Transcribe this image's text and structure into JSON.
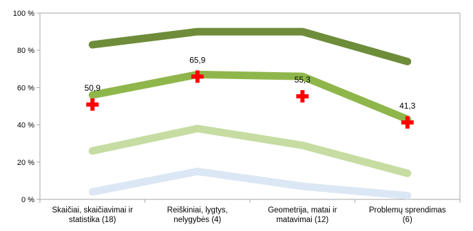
{
  "chart_data": {
    "type": "line",
    "title": "",
    "xlabel": "",
    "ylabel": "",
    "ylim": [
      0,
      100
    ],
    "y_ticks": [
      0,
      20,
      40,
      60,
      80,
      100
    ],
    "y_tick_labels": [
      "0 %",
      "20 %",
      "40 %",
      "60 %",
      "80 %",
      "100 %"
    ],
    "categories": [
      [
        "Skaičiai, skaičiavimai ir",
        "statistika (18)"
      ],
      [
        "Reiškiniai, lygtys,",
        "nelygybės (4)"
      ],
      [
        "Geometrija, matai ir",
        "matavimai (12)"
      ],
      [
        "Problemų sprendimas",
        "(6)"
      ]
    ],
    "grid": false,
    "legend": "none",
    "series": [
      {
        "color": "#6e8c3a",
        "values": [
          83,
          90,
          90,
          74
        ]
      },
      {
        "color": "#8fb64b",
        "values": [
          56,
          67,
          66,
          43
        ]
      },
      {
        "color": "#c6dca2",
        "values": [
          26,
          38,
          29,
          14
        ]
      },
      {
        "color": "#dce7f5",
        "values": [
          4,
          15,
          7,
          2
        ]
      }
    ],
    "markers": {
      "color": "#ff0000",
      "values": [
        50.9,
        65.9,
        55.3,
        41.3
      ],
      "labels": [
        "50,9",
        "65,9",
        "55,3",
        "41,3"
      ]
    }
  }
}
